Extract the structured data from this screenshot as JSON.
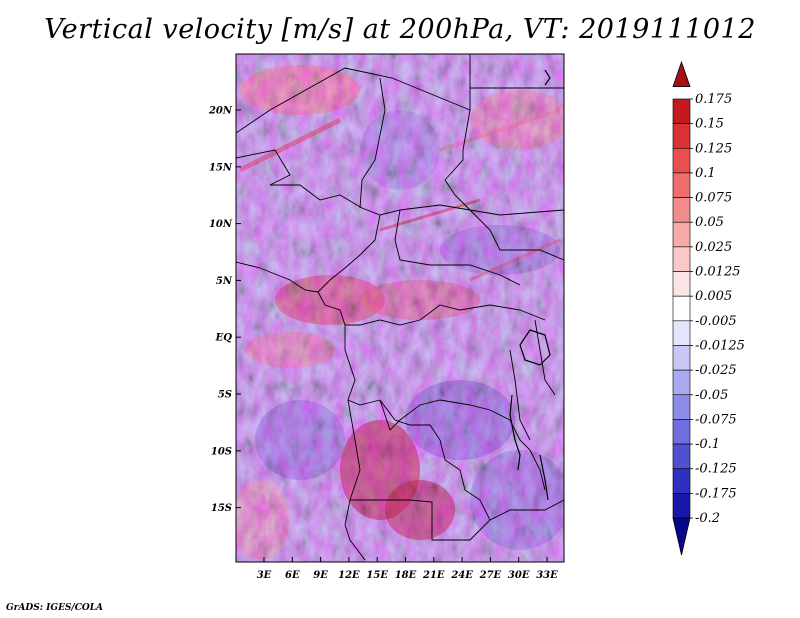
{
  "title": "Vertical velocity [m/s] at 200hPa, VT: 2019111012",
  "credit": "GrADS: IGES/COLA",
  "map": {
    "lon_labels": [
      "3E",
      "6E",
      "9E",
      "12E",
      "15E",
      "18E",
      "21E",
      "24E",
      "27E",
      "30E",
      "33E"
    ],
    "lat_labels": [
      "20N",
      "15N",
      "10N",
      "5N",
      "EQ",
      "5S",
      "10S",
      "15S"
    ]
  },
  "colorbar": {
    "labels": [
      "0.175",
      "0.15",
      "0.125",
      "0.1",
      "0.075",
      "0.05",
      "0.025",
      "0.0125",
      "0.005",
      "-0.005",
      "-0.0125",
      "-0.025",
      "-0.05",
      "-0.075",
      "-0.1",
      "-0.125",
      "-0.175",
      "-0.2"
    ],
    "colors": [
      "#a50f15",
      "#c41a1e",
      "#d93235",
      "#e85050",
      "#ee6e6e",
      "#f28c8c",
      "#f6aaaa",
      "#f9c8c8",
      "#fce4e4",
      "#ffffff",
      "#e4e4fb",
      "#c8c8f6",
      "#aaaaf0",
      "#8c8ce8",
      "#6e6ede",
      "#5050d0",
      "#3030c0",
      "#1818a8",
      "#08088c"
    ]
  },
  "legend_colors": {
    "positive": "#a50f15",
    "negative": "#08088c",
    "zero": "#ffffff"
  }
}
